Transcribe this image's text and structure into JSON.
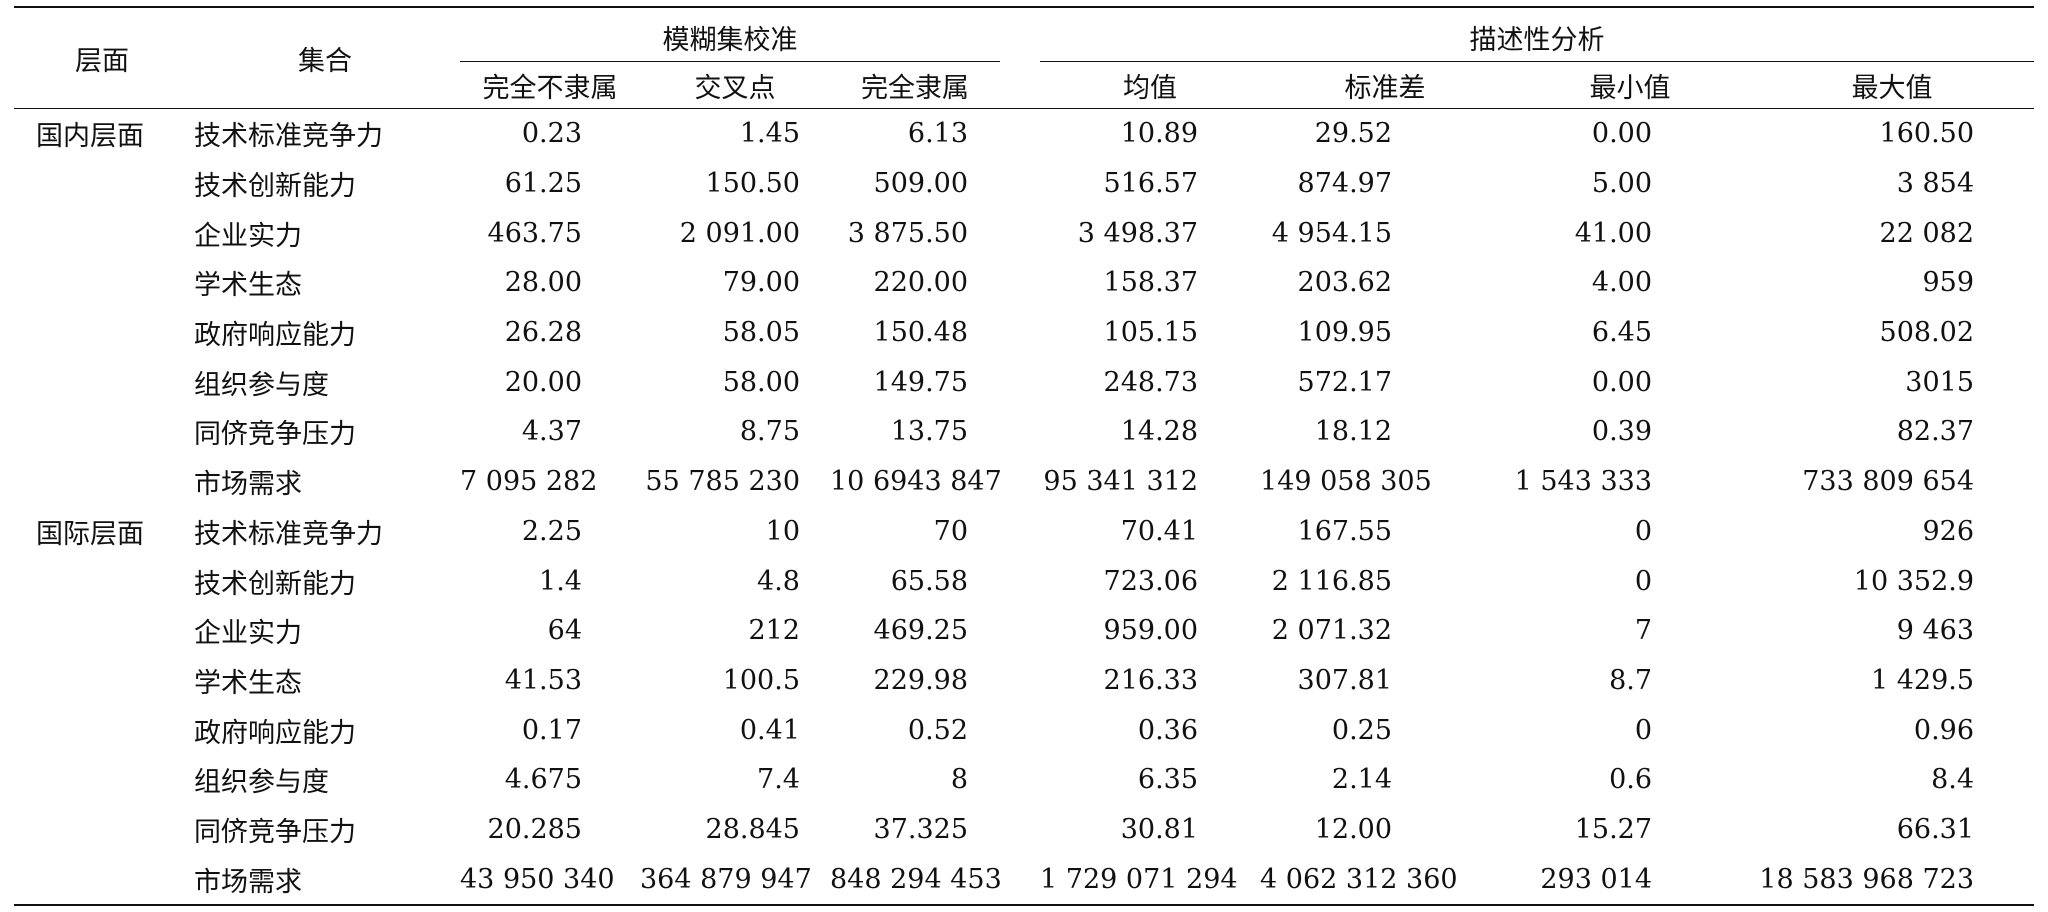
{
  "header": {
    "layer": "层面",
    "set": "集合",
    "group_calibration": "模糊集校准",
    "group_descriptive": "描述性分析",
    "columns": [
      "完全不隶属",
      "交叉点",
      "完全隶属",
      "均值",
      "标准差",
      "最小值",
      "最大值"
    ]
  },
  "groups": [
    {
      "layer": "国内层面",
      "rows": [
        {
          "set": "技术标准竞争力",
          "v": [
            "0.23",
            "1.45",
            "6.13",
            "10.89",
            "29.52",
            "0.00",
            "160.50"
          ]
        },
        {
          "set": "技术创新能力",
          "v": [
            "61.25",
            "150.50",
            "509.00",
            "516.57",
            "874.97",
            "5.00",
            "3 854"
          ]
        },
        {
          "set": "企业实力",
          "v": [
            "463.75",
            "2 091.00",
            "3 875.50",
            "3 498.37",
            "4 954.15",
            "41.00",
            "22 082"
          ]
        },
        {
          "set": "学术生态",
          "v": [
            "28.00",
            "79.00",
            "220.00",
            "158.37",
            "203.62",
            "4.00",
            "959"
          ]
        },
        {
          "set": "政府响应能力",
          "v": [
            "26.28",
            "58.05",
            "150.48",
            "105.15",
            "109.95",
            "6.45",
            "508.02"
          ]
        },
        {
          "set": "组织参与度",
          "v": [
            "20.00",
            "58.00",
            "149.75",
            "248.73",
            "572.17",
            "0.00",
            "3015"
          ]
        },
        {
          "set": "同侪竞争压力",
          "v": [
            "4.37",
            "8.75",
            "13.75",
            "14.28",
            "18.12",
            "0.39",
            "82.37"
          ]
        },
        {
          "set": "市场需求",
          "v": [
            "7 095 282",
            "55 785 230",
            "10 6943 847",
            "95 341 312",
            "149 058 305",
            "1 543 333",
            "733 809 654"
          ]
        }
      ]
    },
    {
      "layer": "国际层面",
      "rows": [
        {
          "set": "技术标准竞争力",
          "v": [
            "2.25",
            "10",
            "70",
            "70.41",
            "167.55",
            "0",
            "926"
          ]
        },
        {
          "set": "技术创新能力",
          "v": [
            "1.4",
            "4.8",
            "65.58",
            "723.06",
            "2 116.85",
            "0",
            "10 352.9"
          ]
        },
        {
          "set": "企业实力",
          "v": [
            "64",
            "212",
            "469.25",
            "959.00",
            "2 071.32",
            "7",
            "9 463"
          ]
        },
        {
          "set": "学术生态",
          "v": [
            "41.53",
            "100.5",
            "229.98",
            "216.33",
            "307.81",
            "8.7",
            "1 429.5"
          ]
        },
        {
          "set": "政府响应能力",
          "v": [
            "0.17",
            "0.41",
            "0.52",
            "0.36",
            "0.25",
            "0",
            "0.96"
          ]
        },
        {
          "set": "组织参与度",
          "v": [
            "4.675",
            "7.4",
            "8",
            "6.35",
            "2.14",
            "0.6",
            "8.4"
          ]
        },
        {
          "set": "同侪竞争压力",
          "v": [
            "20.285",
            "28.845",
            "37.325",
            "30.81",
            "12.00",
            "15.27",
            "66.31"
          ]
        },
        {
          "set": "市场需求",
          "v": [
            "43 950 340",
            "364 879 947",
            "848 294 453",
            "1 729 071 294",
            "4 062 312 360",
            "293 014",
            "18 583 968 723"
          ]
        }
      ]
    }
  ]
}
